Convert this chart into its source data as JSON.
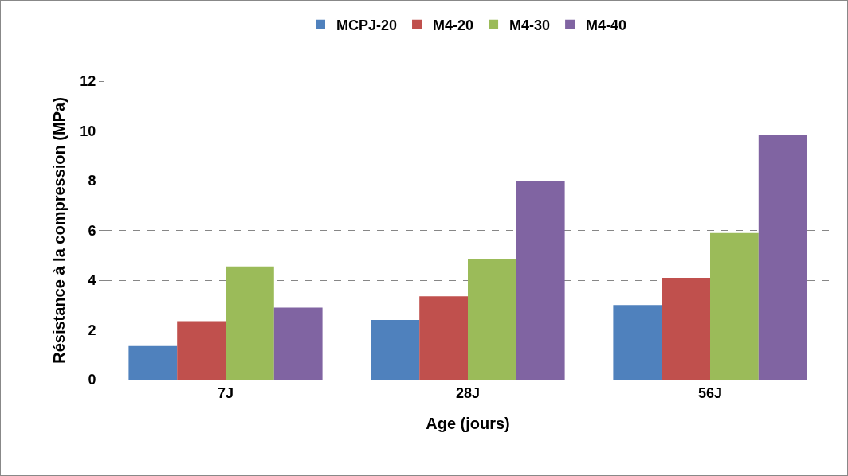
{
  "chart_data": {
    "type": "bar",
    "xlabel": "Age (jours)",
    "ylabel": "Résistance à la compression (MPa)",
    "categories": [
      "7J",
      "28J",
      "56J"
    ],
    "series": [
      {
        "name": "MCPJ-20",
        "color": "#4f81bd",
        "values": [
          1.35,
          2.4,
          3.0
        ]
      },
      {
        "name": "M4-20",
        "color": "#c0504d",
        "values": [
          2.35,
          3.35,
          4.1
        ]
      },
      {
        "name": "M4-30",
        "color": "#9bbb59",
        "values": [
          4.55,
          4.85,
          5.9
        ]
      },
      {
        "name": "M4-40",
        "color": "#8064a2",
        "values": [
          2.9,
          8.0,
          9.85
        ]
      }
    ],
    "ylim": [
      0,
      12
    ],
    "yticks": [
      0,
      2,
      4,
      6,
      8,
      10,
      12
    ],
    "grid": "y",
    "legend": "top"
  }
}
